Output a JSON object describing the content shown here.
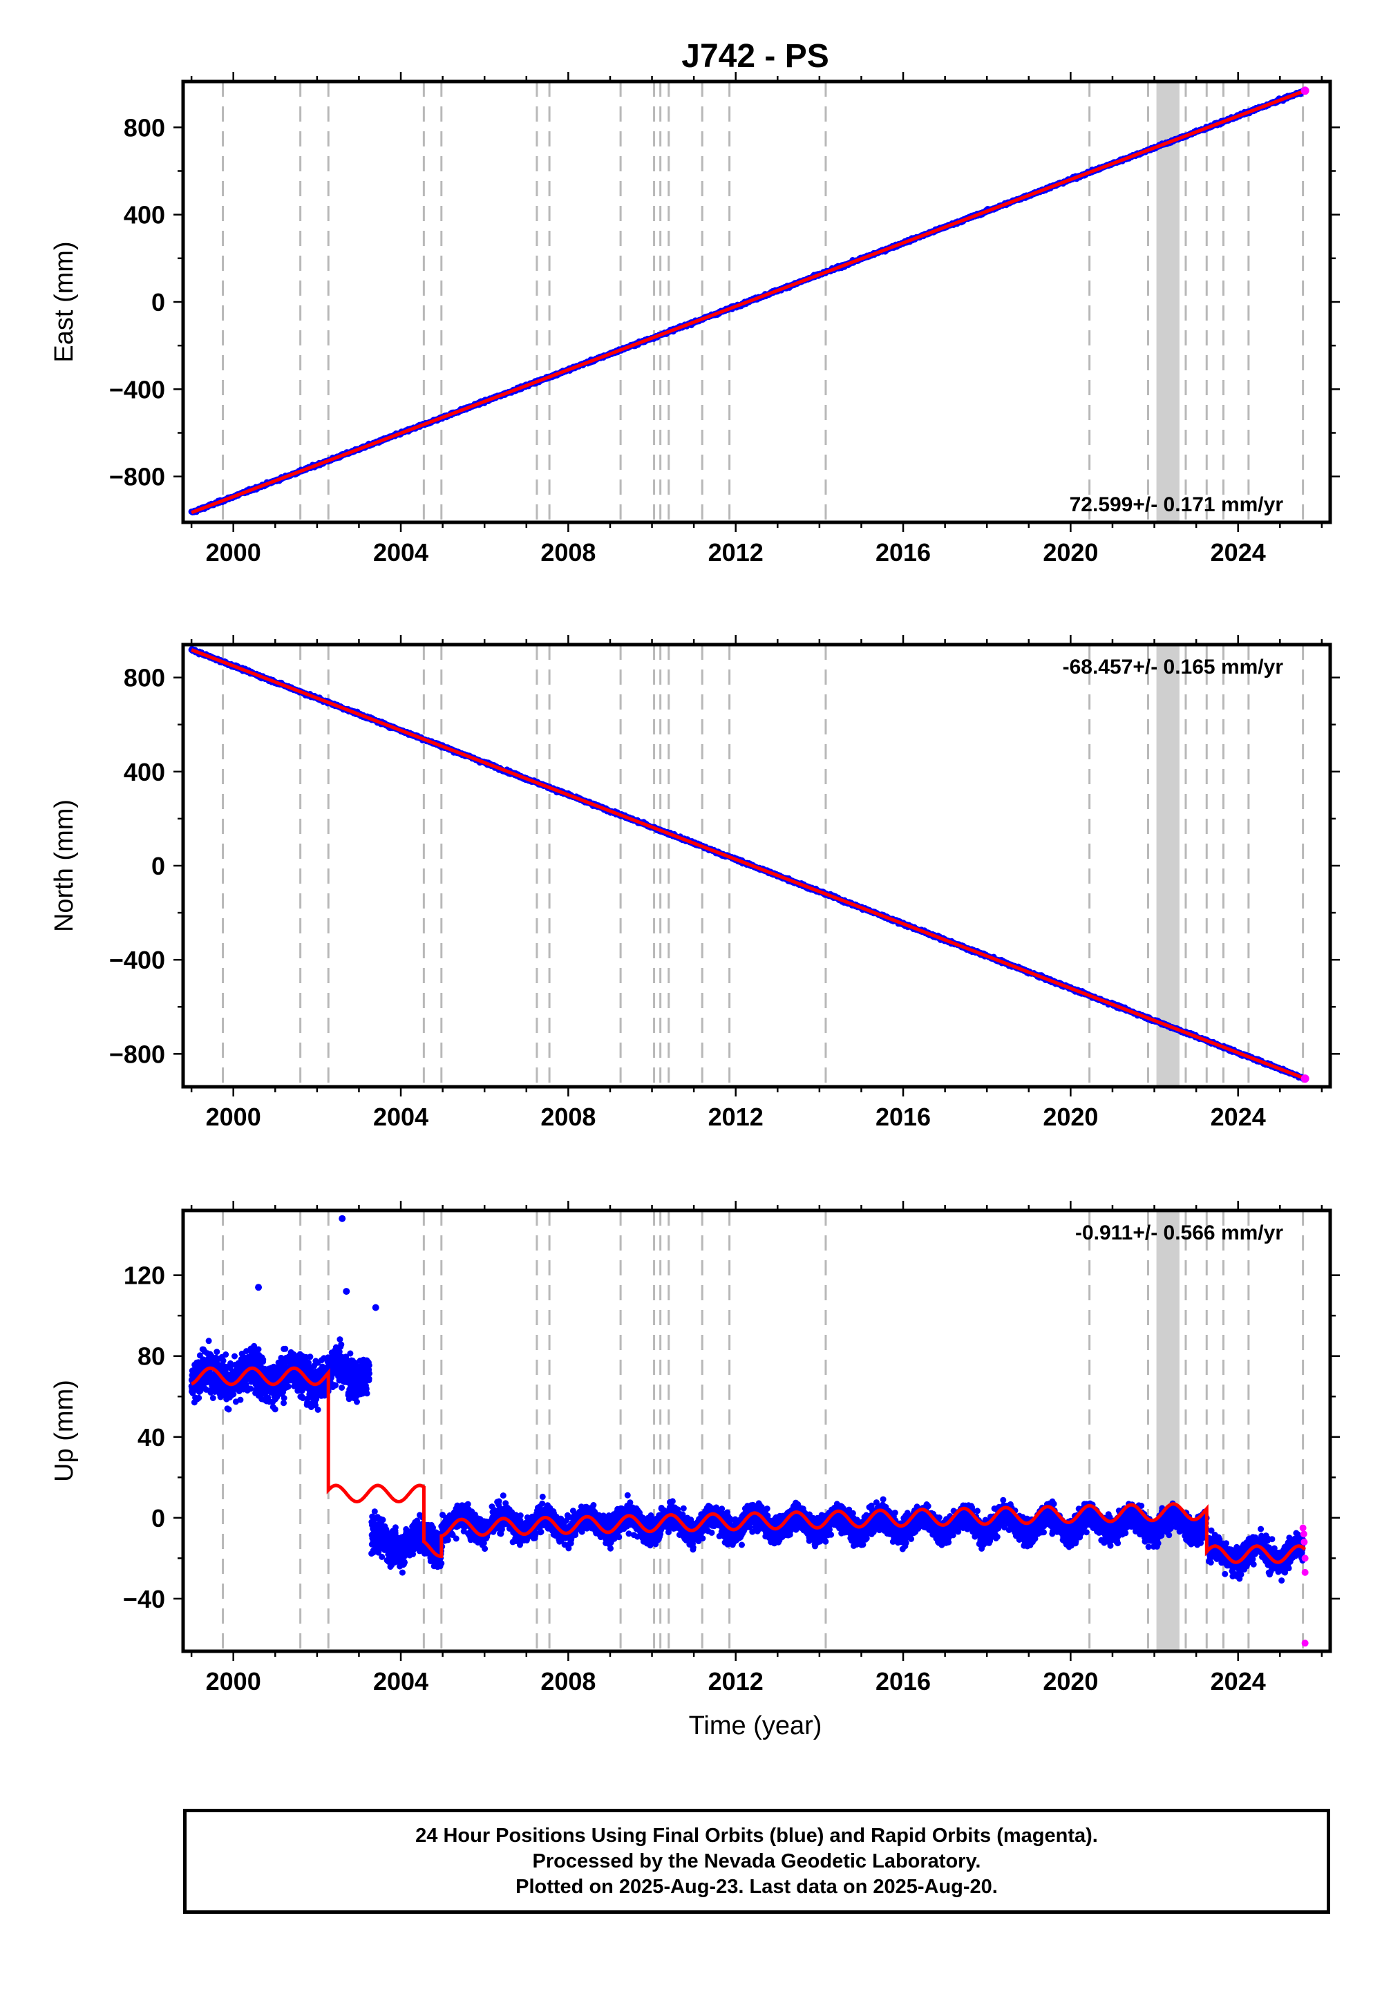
{
  "title": "J742 - PS",
  "chart_data": [
    {
      "type": "scatter",
      "ylabel": "East (mm)",
      "xlim": [
        1998.8,
        2026.2
      ],
      "ylim": [
        -1010,
        1010
      ],
      "xticks": [
        2000,
        2004,
        2008,
        2012,
        2016,
        2020,
        2024
      ],
      "yticks": [
        -800,
        -400,
        0,
        400,
        800
      ],
      "grid": false,
      "trend": {
        "start": [
          1999.0,
          -965
        ],
        "end": [
          2025.6,
          968
        ]
      },
      "noise_mm": 4,
      "rate_label": "72.599+/- 0.171 mm/yr",
      "rate_position": "bottom-right",
      "series": [
        {
          "name": "Final Orbits",
          "color": "#0000ff"
        },
        {
          "name": "Rapid Orbits",
          "color": "#ff00ff"
        },
        {
          "name": "Model",
          "color": "#ff0000"
        }
      ]
    },
    {
      "type": "scatter",
      "ylabel": "North (mm)",
      "xlim": [
        1998.8,
        2026.2
      ],
      "ylim": [
        -940,
        940
      ],
      "xticks": [
        2000,
        2004,
        2008,
        2012,
        2016,
        2020,
        2024
      ],
      "yticks": [
        -800,
        -400,
        0,
        400,
        800
      ],
      "grid": false,
      "trend": {
        "start": [
          1999.0,
          918
        ],
        "end": [
          2025.6,
          -905
        ]
      },
      "noise_mm": 4,
      "rate_label": "-68.457+/- 0.165 mm/yr",
      "rate_position": "top-right",
      "series": [
        {
          "name": "Final Orbits",
          "color": "#0000ff"
        },
        {
          "name": "Rapid Orbits",
          "color": "#ff00ff"
        },
        {
          "name": "Model",
          "color": "#ff0000"
        }
      ]
    },
    {
      "type": "scatter",
      "ylabel": "Up (mm)",
      "xlabel": "Time (year)",
      "xlim": [
        1998.8,
        2026.2
      ],
      "ylim": [
        -66,
        152
      ],
      "xticks": [
        2000,
        2004,
        2008,
        2012,
        2016,
        2020,
        2024
      ],
      "yticks": [
        -40,
        0,
        40,
        80,
        120
      ],
      "grid": false,
      "rate_label": "-0.911+/- 0.566 mm/yr",
      "rate_position": "top-right",
      "model_segments": [
        {
          "start": 1999.0,
          "end": 2002.27,
          "level": 70
        },
        {
          "start": 2002.27,
          "end": 2004.55,
          "level": 12
        },
        {
          "start": 2004.55,
          "end": 2004.97,
          "level": -15
        },
        {
          "start": 2004.97,
          "end": 2023.25,
          "level": -5,
          "slope": 0.45
        },
        {
          "start": 2023.25,
          "end": 2025.6,
          "level": -18
        }
      ],
      "seasonal_amplitude_mm": 4,
      "data_segments": [
        {
          "start": 1999.0,
          "end": 2002.3,
          "mean": 70,
          "spread": 10
        },
        {
          "start": 2002.3,
          "end": 2003.25,
          "mean": 72,
          "spread": 9
        },
        {
          "start": 2003.3,
          "end": 2004.97,
          "mean": -12,
          "spread": 8
        },
        {
          "start": 2004.97,
          "end": 2023.25,
          "mean": -3,
          "spread": 6
        },
        {
          "start": 2023.3,
          "end": 2025.55,
          "mean": -18,
          "spread": 6
        }
      ],
      "outliers": [
        [
          2002.6,
          148
        ],
        [
          2000.6,
          114
        ],
        [
          2002.7,
          112
        ],
        [
          2003.4,
          104
        ],
        [
          2025.6,
          -62
        ]
      ],
      "rapid_points": [
        [
          2025.55,
          -5
        ],
        [
          2025.58,
          -12
        ],
        [
          2025.6,
          -20
        ],
        [
          2025.6,
          -27
        ],
        [
          2025.57,
          -8
        ]
      ],
      "series": [
        {
          "name": "Final Orbits",
          "color": "#0000ff"
        },
        {
          "name": "Rapid Orbits",
          "color": "#ff00ff"
        },
        {
          "name": "Model",
          "color": "#ff0000"
        }
      ]
    }
  ],
  "breaks": {
    "dashed": [
      1999.75,
      2001.6,
      2002.27,
      2004.55,
      2004.97,
      2007.25,
      2007.55,
      2009.25,
      2010.05,
      2010.2,
      2010.4,
      2011.2,
      2011.85,
      2014.15,
      2020.45,
      2021.85,
      2022.75,
      2023.25,
      2023.65,
      2024.25,
      2025.55
    ],
    "shaded_range": [
      2022.05,
      2022.6
    ]
  },
  "footer": {
    "line1": "24 Hour Positions Using Final Orbits (blue) and Rapid Orbits (magenta).",
    "line2": "Processed by the Nevada Geodetic Laboratory.",
    "line3": "Plotted on 2025-Aug-23. Last data on 2025-Aug-20."
  }
}
